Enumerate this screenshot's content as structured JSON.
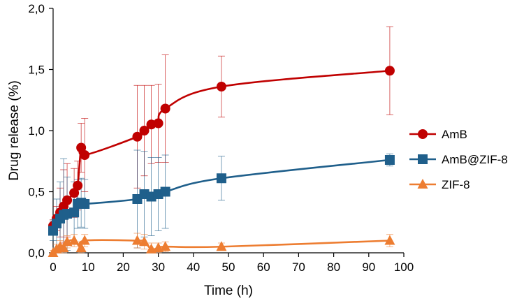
{
  "chart_data": {
    "type": "line",
    "title": "",
    "xlabel": "Time (h)",
    "ylabel": "Drug release (%)",
    "xlim": [
      0,
      100
    ],
    "ylim": [
      0,
      2.0
    ],
    "x_ticks": [
      "0",
      "10",
      "20",
      "30",
      "40",
      "50",
      "60",
      "70",
      "80",
      "90",
      "100"
    ],
    "y_ticks": [
      "0,0",
      "0,5",
      "1,0",
      "1,5",
      "2,0"
    ],
    "legend_position": "right",
    "series": [
      {
        "name": "AmB",
        "color": "#c00000",
        "marker": "circle",
        "x": [
          0,
          1,
          2,
          3,
          4,
          6,
          7,
          8,
          9,
          24,
          26,
          28,
          30,
          32,
          48,
          96
        ],
        "values": [
          0.22,
          0.28,
          0.33,
          0.38,
          0.43,
          0.49,
          0.55,
          0.86,
          0.8,
          0.95,
          1.0,
          1.05,
          1.06,
          1.18,
          1.36,
          1.49
        ],
        "errors": [
          0.05,
          0.1,
          0.2,
          0.3,
          0.3,
          0.2,
          0.2,
          0.2,
          0.3,
          0.42,
          0.37,
          0.32,
          0.32,
          0.44,
          0.25,
          0.36
        ]
      },
      {
        "name": "AmB@ZIF-8",
        "color": "#1f5f8b",
        "marker": "square",
        "x": [
          0,
          1,
          2,
          3,
          4,
          6,
          7,
          8,
          9,
          24,
          26,
          28,
          30,
          32,
          48,
          96
        ],
        "values": [
          0.18,
          0.24,
          0.28,
          0.31,
          0.32,
          0.33,
          0.4,
          0.41,
          0.4,
          0.44,
          0.48,
          0.46,
          0.48,
          0.5,
          0.61,
          0.76
        ],
        "errors": [
          0.08,
          0.2,
          0.3,
          0.46,
          0.3,
          0.25,
          0.2,
          0.2,
          0.2,
          0.4,
          0.35,
          0.32,
          0.3,
          0.3,
          0.18,
          0.05
        ]
      },
      {
        "name": "ZIF-8",
        "color": "#ed7d31",
        "marker": "triangle",
        "x": [
          0,
          1,
          2,
          3,
          4,
          6,
          8,
          9,
          24,
          26,
          28,
          30,
          32,
          48,
          96
        ],
        "values": [
          0.0,
          0.03,
          0.05,
          0.04,
          0.09,
          0.1,
          0.04,
          0.1,
          0.1,
          0.09,
          0.03,
          0.04,
          0.05,
          0.05,
          0.1
        ],
        "errors": [
          0.02,
          0.04,
          0.05,
          0.05,
          0.05,
          0.05,
          0.05,
          0.05,
          0.06,
          0.06,
          0.05,
          0.04,
          0.04,
          0.03,
          0.05
        ]
      }
    ]
  }
}
